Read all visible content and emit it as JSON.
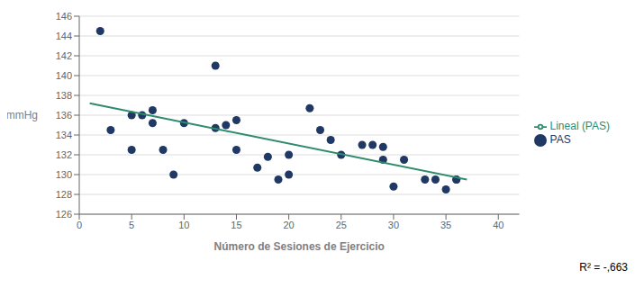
{
  "chart_data": {
    "type": "scatter",
    "x_label": "Número de Sesiones de Ejercicio",
    "y_label": "mmHg",
    "xlim": [
      0,
      42
    ],
    "ylim": [
      126,
      146
    ],
    "xticks": [
      0,
      5,
      10,
      15,
      20,
      25,
      30,
      35,
      40
    ],
    "yticks": [
      126,
      128,
      130,
      132,
      134,
      136,
      138,
      140,
      142,
      144,
      146
    ],
    "grid": "y",
    "legend": "right",
    "annotation": "R² = -,663",
    "series": [
      {
        "name": "PAS",
        "type": "scatter",
        "marker": "circle",
        "color": "#1F3864",
        "x": [
          2,
          3,
          5,
          5,
          6,
          7,
          7,
          8,
          9,
          10,
          13,
          13,
          14,
          15,
          15,
          17,
          18,
          19,
          20,
          20,
          22,
          23,
          24,
          25,
          27,
          28,
          29,
          29,
          30,
          31,
          33,
          34,
          35,
          36,
          36
        ],
        "values": [
          144.5,
          134.5,
          136,
          132.5,
          136,
          136.5,
          135.2,
          132.5,
          130,
          135.2,
          141,
          134.7,
          135,
          132.5,
          135.5,
          130.7,
          131.8,
          129.5,
          132,
          130,
          136.7,
          134.5,
          133.5,
          132,
          133,
          133,
          132.8,
          131.5,
          128.8,
          131.5,
          129.5,
          129.5,
          128.5,
          129.5,
          129.5
        ]
      },
      {
        "name": "Lineal (PAS)",
        "type": "line",
        "line_style": "solid",
        "color": "#2E8B6E",
        "x": [
          1,
          37
        ],
        "values": [
          137.2,
          129.5
        ]
      }
    ]
  }
}
